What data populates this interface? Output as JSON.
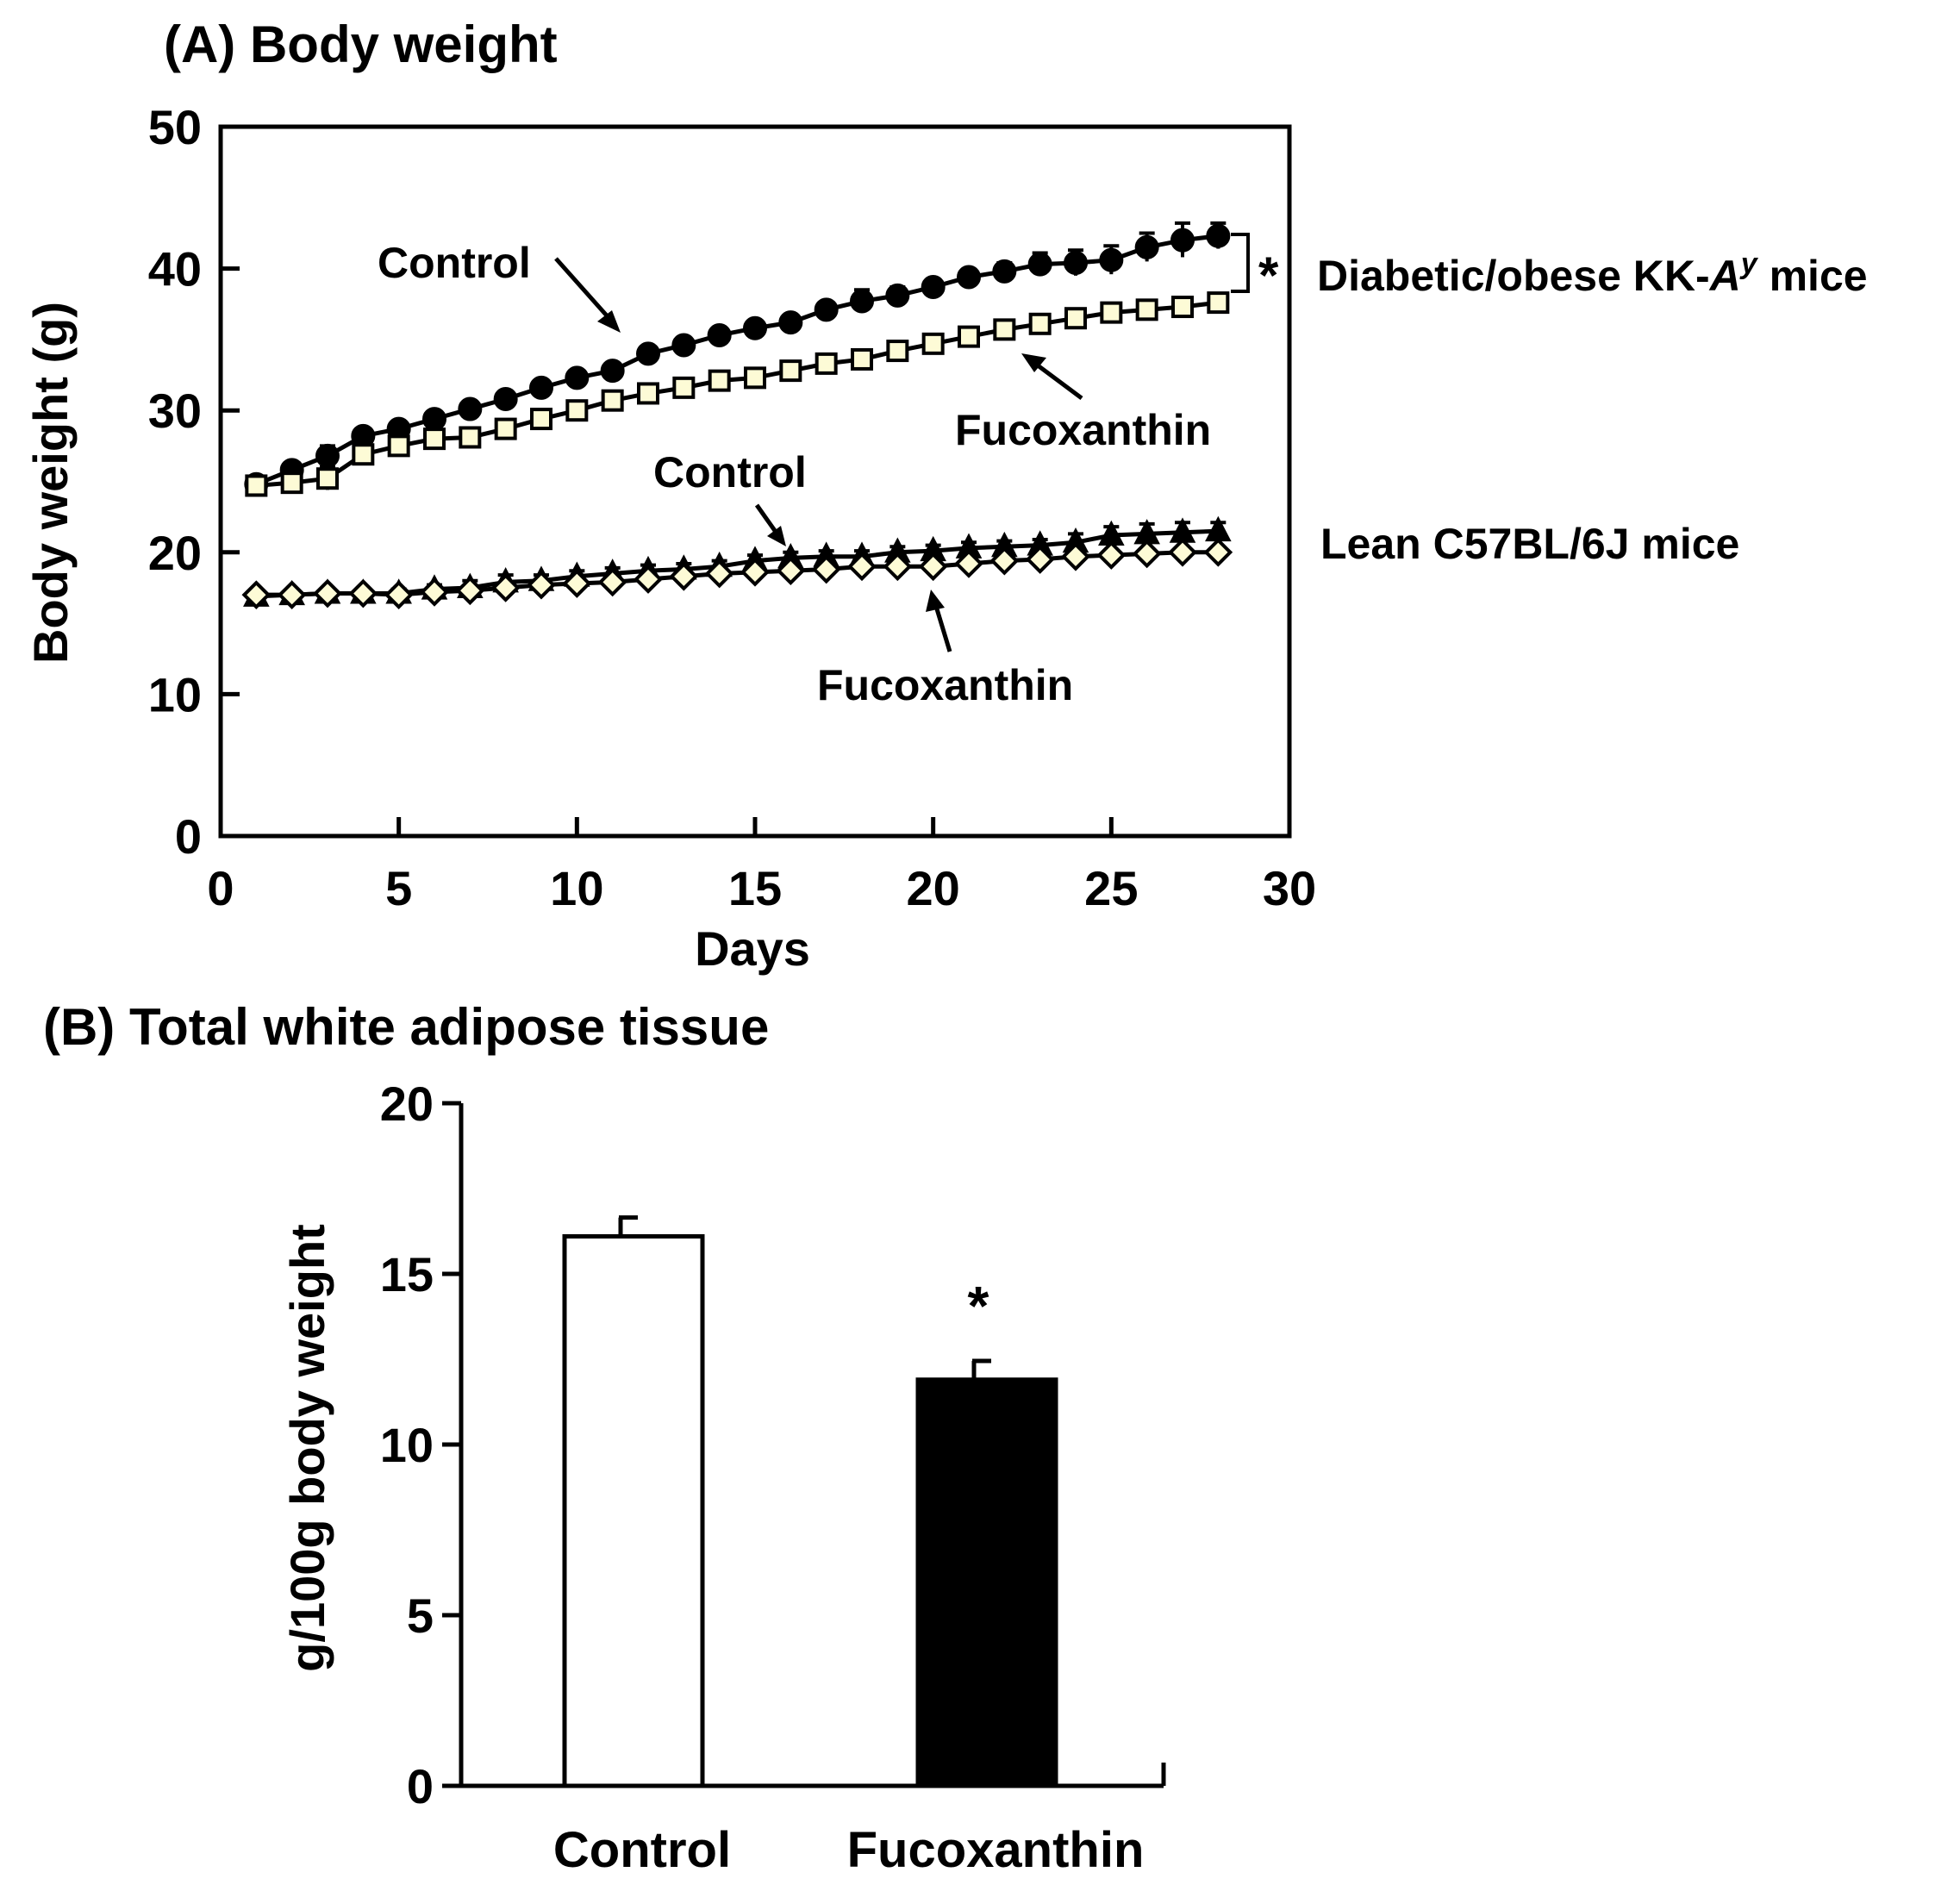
{
  "chart_data": [
    {
      "type": "line",
      "title": "(A) Body weight",
      "xlabel": "Days",
      "ylabel": "Body weight (g)",
      "xlim": [
        0,
        30
      ],
      "ylim": [
        0,
        50
      ],
      "xticks": [
        "0",
        "5",
        "10",
        "15",
        "20",
        "25",
        "30"
      ],
      "yticks": [
        "0",
        "10",
        "20",
        "30",
        "40",
        "50"
      ],
      "grid": false,
      "x": [
        1,
        2,
        3,
        4,
        5,
        6,
        7,
        8,
        9,
        10,
        11,
        12,
        13,
        14,
        15,
        16,
        17,
        18,
        19,
        20,
        21,
        22,
        23,
        24,
        25,
        26,
        27,
        28
      ],
      "series": [
        {
          "group": "obese",
          "marker": "circle",
          "fill": "#000000",
          "values": [
            24.8,
            25.8,
            26.8,
            28.2,
            28.7,
            29.4,
            30.1,
            30.8,
            31.6,
            32.3,
            32.8,
            34.0,
            34.6,
            35.3,
            35.8,
            36.2,
            37.1,
            37.7,
            38.1,
            38.7,
            39.4,
            39.8,
            40.3,
            40.4,
            40.6,
            41.5,
            42.0,
            42.3
          ],
          "errors": [
            0.4,
            0.5,
            0.7,
            0.5,
            0.4,
            0.4,
            0.5,
            0.5,
            0.5,
            0.5,
            0.5,
            0.5,
            0.5,
            0.5,
            0.5,
            0.5,
            0.5,
            0.8,
            0.6,
            0.5,
            0.5,
            0.6,
            0.8,
            0.9,
            1.0,
            1.0,
            1.2,
            0.9
          ]
        },
        {
          "group": "obese",
          "marker": "square",
          "fill": "#fdfbd6",
          "values": [
            24.7,
            24.9,
            25.2,
            26.9,
            27.5,
            28.0,
            28.1,
            28.7,
            29.4,
            30.0,
            30.7,
            31.2,
            31.6,
            32.1,
            32.3,
            32.8,
            33.3,
            33.6,
            34.2,
            34.7,
            35.2,
            35.7,
            36.1,
            36.5,
            36.9,
            37.1,
            37.3,
            37.6
          ],
          "errors": [
            0.5,
            0.5,
            0.8,
            0.5,
            0.4,
            0.4,
            0.4,
            0.4,
            0.4,
            0.4,
            0.5,
            0.5,
            0.5,
            0.5,
            0.5,
            0.5,
            0.5,
            0.5,
            0.5,
            0.5,
            0.5,
            0.5,
            0.5,
            0.5,
            0.5,
            0.5,
            0.5,
            0.5
          ]
        },
        {
          "group": "lean",
          "marker": "triangle",
          "fill": "#000000",
          "values": [
            16.9,
            17.0,
            17.1,
            17.1,
            17.1,
            17.4,
            17.5,
            17.9,
            18.0,
            18.3,
            18.5,
            18.7,
            18.8,
            19.0,
            19.4,
            19.6,
            19.7,
            19.7,
            20.0,
            20.1,
            20.3,
            20.4,
            20.5,
            20.7,
            21.2,
            21.3,
            21.4,
            21.5
          ],
          "errors": [
            0.3,
            0.3,
            0.3,
            0.3,
            0.3,
            0.3,
            0.5,
            0.5,
            0.4,
            0.4,
            0.4,
            0.4,
            0.4,
            0.4,
            0.4,
            0.4,
            0.4,
            0.4,
            0.4,
            0.4,
            0.4,
            0.4,
            0.4,
            0.6,
            0.6,
            0.7,
            0.7,
            0.6
          ]
        },
        {
          "group": "lean",
          "marker": "diamond",
          "fill": "#fdfbd6",
          "values": [
            17.0,
            17.0,
            17.1,
            17.1,
            17.0,
            17.2,
            17.3,
            17.5,
            17.7,
            17.8,
            17.9,
            18.1,
            18.3,
            18.5,
            18.6,
            18.7,
            18.8,
            19.0,
            19.0,
            19.0,
            19.2,
            19.4,
            19.5,
            19.7,
            19.8,
            19.9,
            20.0,
            20.0
          ],
          "errors": [
            0.3,
            0.3,
            0.3,
            0.3,
            0.3,
            0.3,
            0.3,
            0.3,
            0.3,
            0.3,
            0.3,
            0.3,
            0.3,
            0.3,
            0.3,
            0.3,
            0.3,
            0.3,
            0.3,
            0.3,
            0.3,
            0.3,
            0.3,
            0.3,
            0.3,
            0.3,
            0.3,
            0.3
          ]
        }
      ],
      "annotations": {
        "control_top": "Control",
        "fucoxanthin_top": "Fucoxanthin",
        "control_bottom": "Control",
        "fucoxanthin_bottom": "Fucoxanthin",
        "asterisk": "*",
        "group_obese_prefix": "Diabetic/obese KK-",
        "group_obese_italic": "A",
        "group_obese_sup": "y",
        "group_obese_suffix": " mice",
        "group_lean": "Lean C57BL/6J mice"
      }
    },
    {
      "type": "bar",
      "title": "(B) Total white adipose tissue",
      "ylabel": "g/100g body weight",
      "xlabel": "",
      "ylim": [
        0,
        20
      ],
      "yticks": [
        "0",
        "5",
        "10",
        "15",
        "20"
      ],
      "grid": false,
      "categories": [
        "Control",
        "Fucoxanthin"
      ],
      "values": [
        16.1,
        11.9
      ],
      "errors": [
        0.55,
        0.55
      ],
      "colors": [
        "#ffffff",
        "#000000"
      ],
      "asterisk": "*"
    }
  ]
}
